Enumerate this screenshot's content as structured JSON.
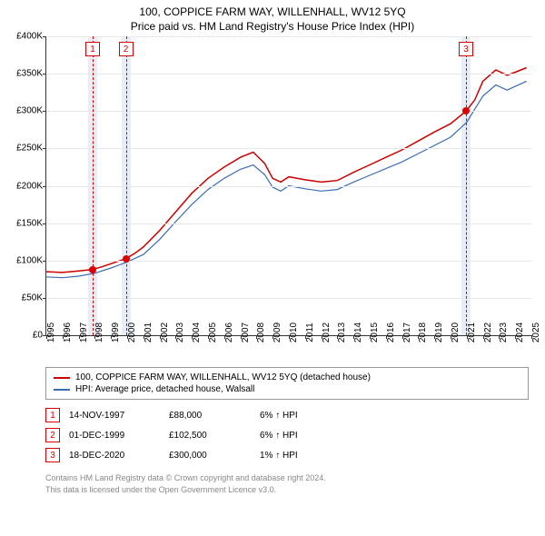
{
  "title": "100, COPPICE FARM WAY, WILLENHALL, WV12 5YQ",
  "subtitle": "Price paid vs. HM Land Registry's House Price Index (HPI)",
  "chart": {
    "type": "line",
    "background_color": "#ffffff",
    "grid_color": "#e8e8e8",
    "axis_color": "#333333",
    "tick_fontsize": 10,
    "ylim": [
      0,
      400000
    ],
    "ytick_step": 50000,
    "yticks": [
      "£0",
      "£50K",
      "£100K",
      "£150K",
      "£200K",
      "£250K",
      "£300K",
      "£350K",
      "£400K"
    ],
    "xlim": [
      1995,
      2025
    ],
    "xticks": [
      1995,
      1996,
      1997,
      1998,
      1999,
      2000,
      2001,
      2002,
      2003,
      2004,
      2005,
      2006,
      2007,
      2008,
      2009,
      2010,
      2011,
      2012,
      2013,
      2014,
      2015,
      2016,
      2017,
      2018,
      2019,
      2020,
      2021,
      2022,
      2023,
      2024,
      2025
    ],
    "series": [
      {
        "name": "property",
        "label": "100, COPPICE FARM WAY, WILLENHALL, WV12 5YQ (detached house)",
        "color": "#cc0000",
        "line_width": 1.5,
        "data": [
          [
            1995,
            85000
          ],
          [
            1996,
            84000
          ],
          [
            1997,
            86000
          ],
          [
            1997.87,
            88000
          ],
          [
            1998.5,
            92000
          ],
          [
            1999.92,
            102500
          ],
          [
            2000.5,
            110000
          ],
          [
            2001,
            118000
          ],
          [
            2002,
            140000
          ],
          [
            2003,
            165000
          ],
          [
            2004,
            190000
          ],
          [
            2005,
            210000
          ],
          [
            2006,
            225000
          ],
          [
            2007,
            238000
          ],
          [
            2007.8,
            245000
          ],
          [
            2008.5,
            230000
          ],
          [
            2009,
            210000
          ],
          [
            2009.5,
            205000
          ],
          [
            2010,
            212000
          ],
          [
            2011,
            208000
          ],
          [
            2012,
            205000
          ],
          [
            2013,
            207000
          ],
          [
            2014,
            218000
          ],
          [
            2015,
            228000
          ],
          [
            2016,
            238000
          ],
          [
            2017,
            248000
          ],
          [
            2018,
            260000
          ],
          [
            2019,
            272000
          ],
          [
            2020,
            283000
          ],
          [
            2020.96,
            300000
          ],
          [
            2021.5,
            315000
          ],
          [
            2022,
            340000
          ],
          [
            2022.8,
            355000
          ],
          [
            2023.5,
            348000
          ],
          [
            2024,
            352000
          ],
          [
            2024.7,
            358000
          ]
        ]
      },
      {
        "name": "hpi",
        "label": "HPI: Average price, detached house, Walsall",
        "color": "#3b6db3",
        "line_width": 1.2,
        "data": [
          [
            1995,
            78000
          ],
          [
            1996,
            77000
          ],
          [
            1997,
            79000
          ],
          [
            1998,
            83000
          ],
          [
            1999,
            90000
          ],
          [
            2000,
            98000
          ],
          [
            2001,
            108000
          ],
          [
            2002,
            128000
          ],
          [
            2003,
            152000
          ],
          [
            2004,
            175000
          ],
          [
            2005,
            195000
          ],
          [
            2006,
            210000
          ],
          [
            2007,
            222000
          ],
          [
            2007.8,
            228000
          ],
          [
            2008.5,
            215000
          ],
          [
            2009,
            198000
          ],
          [
            2009.5,
            193000
          ],
          [
            2010,
            200000
          ],
          [
            2011,
            196000
          ],
          [
            2012,
            193000
          ],
          [
            2013,
            195000
          ],
          [
            2014,
            205000
          ],
          [
            2015,
            214000
          ],
          [
            2016,
            223000
          ],
          [
            2017,
            232000
          ],
          [
            2018,
            243000
          ],
          [
            2019,
            254000
          ],
          [
            2020,
            265000
          ],
          [
            2021,
            285000
          ],
          [
            2022,
            320000
          ],
          [
            2022.8,
            335000
          ],
          [
            2023.5,
            328000
          ],
          [
            2024,
            333000
          ],
          [
            2024.7,
            340000
          ]
        ]
      }
    ],
    "markers": [
      {
        "n": "1",
        "x": 1997.87,
        "y": 88000,
        "band_start": 1997.6,
        "band_end": 1998.15
      },
      {
        "n": "2",
        "x": 1999.92,
        "y": 102500,
        "band_start": 1999.65,
        "band_end": 2000.2
      },
      {
        "n": "3",
        "x": 2020.96,
        "y": 300000,
        "band_start": 2020.7,
        "band_end": 2021.25
      }
    ],
    "marker_color": "#d00000",
    "marker_band_color": "#e9eef6"
  },
  "legend": {
    "border_color": "#999999",
    "fontsize": 10
  },
  "sales": [
    {
      "n": "1",
      "date": "14-NOV-1997",
      "price": "£88,000",
      "delta": "6% ↑ HPI"
    },
    {
      "n": "2",
      "date": "01-DEC-1999",
      "price": "£102,500",
      "delta": "6% ↑ HPI"
    },
    {
      "n": "3",
      "date": "18-DEC-2020",
      "price": "£300,000",
      "delta": "1% ↑ HPI"
    }
  ],
  "footer": {
    "line1": "Contains HM Land Registry data © Crown copyright and database right 2024.",
    "line2": "This data is licensed under the Open Government Licence v3.0.",
    "color": "#888888",
    "fontsize": 9
  }
}
